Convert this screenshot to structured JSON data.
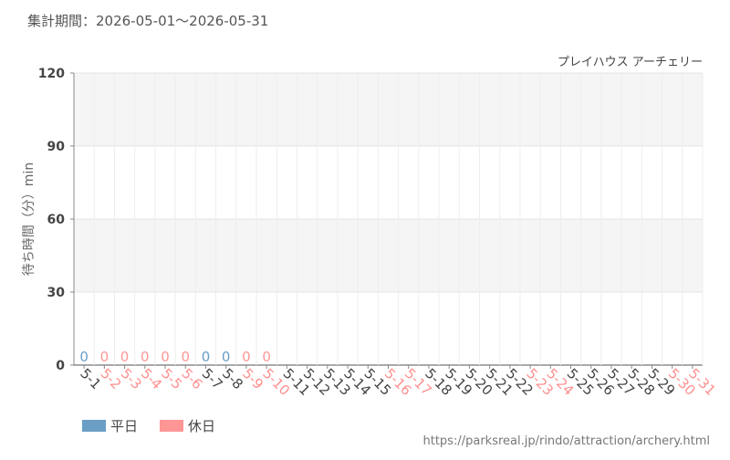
{
  "chart_data": {
    "type": "bar",
    "period": "集計期間：2026-05-01～2026-05-31",
    "subtitle": "プレイハウス アーチェリー",
    "y_label": "待ち時間（分）min",
    "source": "https://parksreal.jp/rindo/attraction/archery.html",
    "categories": [
      "5-1",
      "5-2",
      "5-3",
      "5-4",
      "5-5",
      "5-6",
      "5-7",
      "5-8",
      "5-9",
      "5-10",
      "5-11",
      "5-12",
      "5-13",
      "5-14",
      "5-15",
      "5-16",
      "5-17",
      "5-18",
      "5-19",
      "5-20",
      "5-21",
      "5-22",
      "5-23",
      "5-24",
      "5-25",
      "5-26",
      "5-27",
      "5-28",
      "5-29",
      "5-30",
      "5-31"
    ],
    "category_label_colors": [
      "#444",
      "#ff8f8f",
      "#ff8f8f",
      "#ff8f8f",
      "#ff8f8f",
      "#ff8f8f",
      "#444",
      "#444",
      "#ff8f8f",
      "#ff8f8f",
      "#444",
      "#444",
      "#444",
      "#444",
      "#444",
      "#ff8f8f",
      "#ff8f8f",
      "#444",
      "#444",
      "#444",
      "#444",
      "#444",
      "#ff8f8f",
      "#ff8f8f",
      "#444",
      "#444",
      "#444",
      "#444",
      "#444",
      "#ff8f8f",
      "#ff8f8f"
    ],
    "series": [
      {
        "name": "平日",
        "color": "#6a9ec5",
        "values": [
          0,
          null,
          null,
          null,
          null,
          null,
          0,
          0,
          null,
          null,
          null,
          null,
          null,
          null,
          null,
          null,
          null,
          null,
          null,
          null,
          null,
          null,
          null,
          null,
          null,
          null,
          null,
          null,
          null,
          null,
          null
        ]
      },
      {
        "name": "休日",
        "color": "#ff9696",
        "values": [
          null,
          0,
          0,
          0,
          0,
          0,
          null,
          null,
          0,
          0,
          null,
          null,
          null,
          null,
          null,
          null,
          null,
          null,
          null,
          null,
          null,
          null,
          null,
          null,
          null,
          null,
          null,
          null,
          null,
          null,
          null
        ]
      }
    ],
    "ylim": [
      0,
      120
    ],
    "yticks": [
      0,
      30,
      60,
      90,
      120
    ],
    "grid": true
  }
}
